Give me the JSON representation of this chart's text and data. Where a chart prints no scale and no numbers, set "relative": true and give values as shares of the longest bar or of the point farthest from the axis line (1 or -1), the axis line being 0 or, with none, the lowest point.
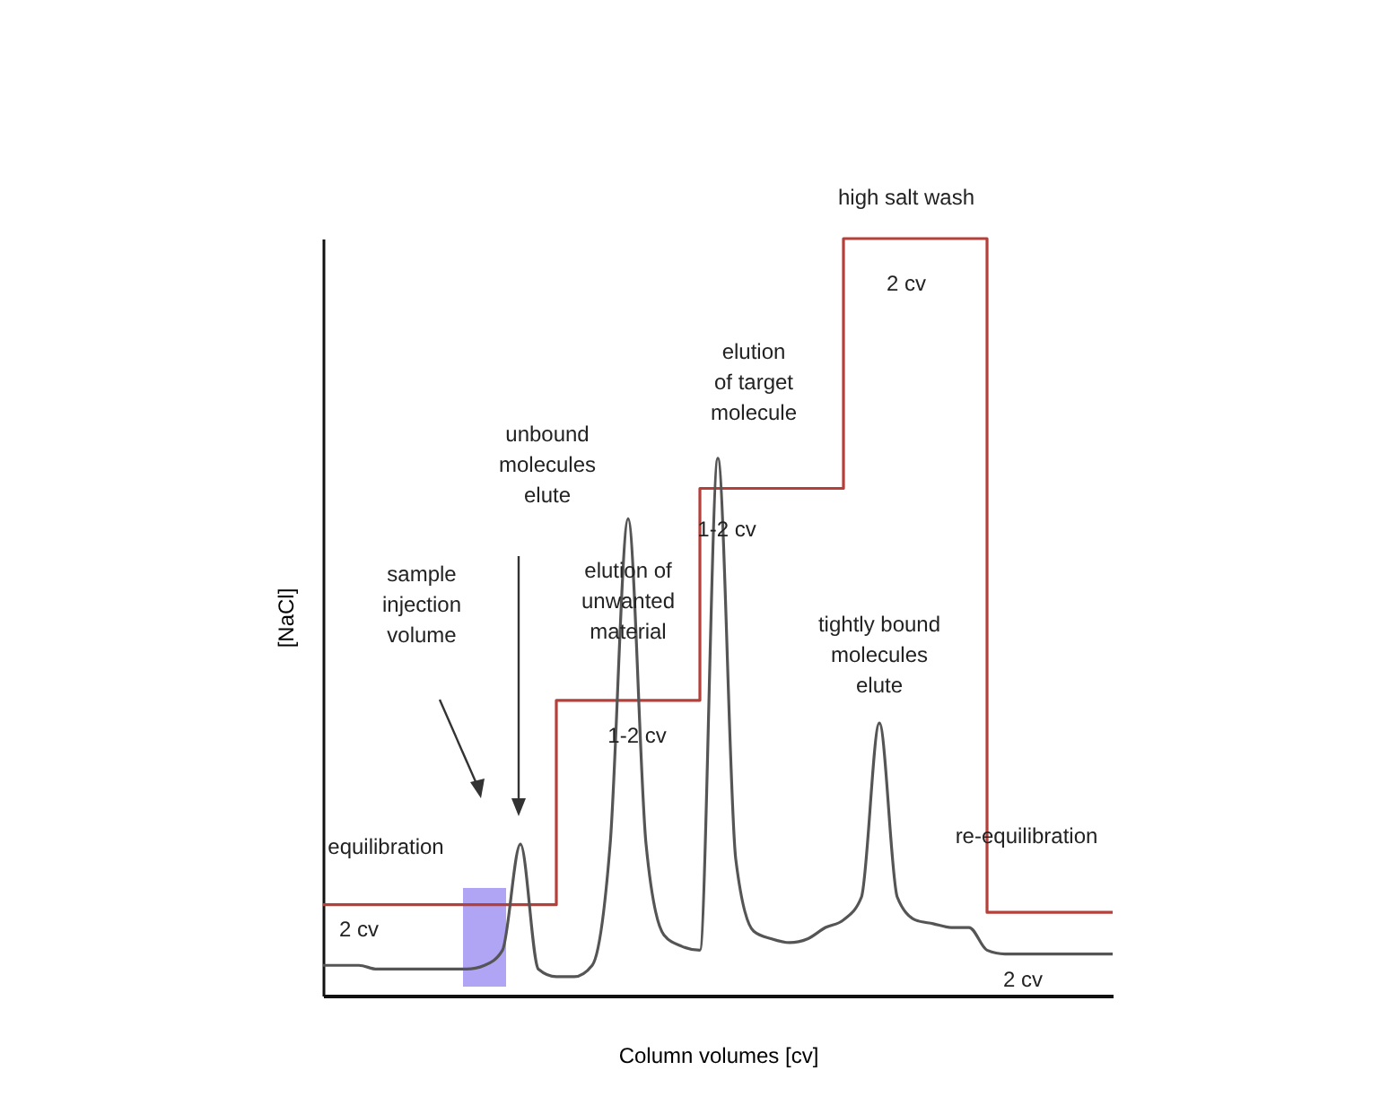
{
  "chart_data": {
    "type": "line",
    "relative": true,
    "xlabel": "Column volumes [cv]",
    "ylabel": "[NaCl]",
    "legend": false,
    "categories": [
      null,
      null,
      null,
      null,
      null,
      null,
      null,
      null,
      null,
      null,
      null,
      null,
      null,
      null,
      null,
      null,
      null,
      null,
      null,
      null,
      null,
      null,
      null,
      null,
      null,
      null,
      null,
      null,
      null,
      null,
      null,
      null,
      null,
      null,
      null,
      null,
      null,
      null,
      null,
      null,
      null,
      null,
      null,
      null,
      null
    ],
    "series": [
      {
        "type": "step",
        "color": "#b5403a",
        "values": [
          0.12,
          0.12,
          0.12,
          0.12,
          0.12,
          0.12,
          0.12,
          0.12,
          0.12,
          0.12,
          0.12,
          0.12,
          0.12,
          0.39,
          0.39,
          0.39,
          0.39,
          0.39,
          0.39,
          0.39,
          0.39,
          0.67,
          0.67,
          0.67,
          0.67,
          0.67,
          0.67,
          0.67,
          0.67,
          1,
          1,
          1,
          1,
          1,
          1,
          1,
          1,
          0.11,
          0.11,
          0.11,
          0.11,
          0.11,
          0.11,
          0.11,
          0.11
        ]
      },
      {
        "color": "#555555",
        "values": [
          0.04,
          0.04,
          0.04,
          0.035,
          0.035,
          0.035,
          0.035,
          0.035,
          0.035,
          0.04,
          0.06,
          0.2,
          0.035,
          0.025,
          0.025,
          0.04,
          0.2,
          0.63,
          0.2,
          0.08,
          0.065,
          0.06,
          0.71,
          0.18,
          0.085,
          0.075,
          0.07,
          0.075,
          0.09,
          0.1,
          0.13,
          0.36,
          0.13,
          0.1,
          0.095,
          0.09,
          0.09,
          0.06,
          0.055,
          0.055,
          0.055,
          0.055,
          0.055,
          0.055,
          0.055
        ]
      }
    ],
    "annotations": [
      "high salt wash",
      "2 cv",
      "elution of target molecule",
      "1-2 cv",
      "unbound molecules elute",
      "sample injection volume",
      "elution of unwanted material",
      "1-2 cv",
      "tightly bound molecules elute",
      "equilibration",
      "2 cv",
      "re-equilibration",
      "2 cv"
    ]
  }
}
